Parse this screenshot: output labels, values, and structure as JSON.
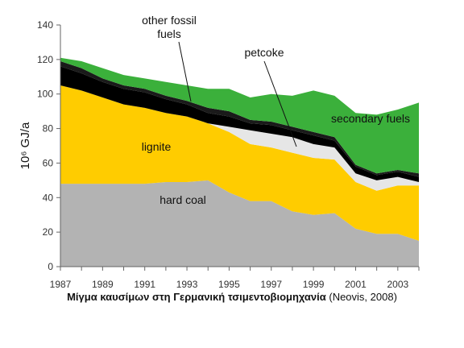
{
  "chart_data": {
    "type": "area",
    "stacked": true,
    "x": [
      1987,
      1988,
      1989,
      1990,
      1991,
      1992,
      1993,
      1994,
      1995,
      1996,
      1997,
      1998,
      1999,
      2000,
      2001,
      2002,
      2003,
      2004
    ],
    "xticks": [
      "1987",
      "1989",
      "1991",
      "1993",
      "1995",
      "1997",
      "1999",
      "2001",
      "2003"
    ],
    "ylim": [
      0,
      140
    ],
    "yticks": [
      "0",
      "20",
      "40",
      "60",
      "80",
      "100",
      "120",
      "140"
    ],
    "ylabel": "10⁶ GJ/a",
    "grid": false,
    "series": [
      {
        "name": "hard coal",
        "color": "#b3b3b3",
        "values": [
          48,
          48,
          48,
          48,
          48,
          49,
          49,
          50,
          43,
          38,
          38,
          32,
          30,
          31,
          22,
          19,
          19,
          15
        ]
      },
      {
        "name": "lignite",
        "color": "#ffcc00",
        "values": [
          57,
          54,
          50,
          46,
          44,
          40,
          38,
          33,
          35,
          33,
          31,
          34,
          33,
          31,
          27,
          25,
          28,
          32
        ]
      },
      {
        "name": "petcoke",
        "color": "#e6e6e6",
        "values": [
          0,
          0,
          0,
          0,
          0,
          0,
          0,
          0,
          3,
          8,
          8,
          9,
          8,
          7,
          5,
          6,
          5,
          2
        ]
      },
      {
        "name": "",
        "color": "#000000",
        "values": [
          11,
          10,
          9,
          9,
          9,
          8,
          7,
          6,
          6,
          4,
          5,
          4,
          5,
          4,
          4,
          3,
          3,
          3
        ]
      },
      {
        "name": "other fossil fuels",
        "color": "#1a1a1a",
        "values": [
          3,
          3,
          2,
          2,
          2,
          2,
          2,
          3,
          3,
          2,
          2,
          2,
          2,
          2,
          1,
          1,
          1,
          2
        ]
      },
      {
        "name": "secondary fuels",
        "color": "#3bb03b",
        "values": [
          2,
          4,
          6,
          6,
          6,
          8,
          9,
          11,
          13,
          13,
          16,
          18,
          24,
          24,
          30,
          34,
          35,
          41
        ]
      }
    ],
    "annotations": [
      {
        "text_lines": [
          "other fossil",
          "fuels"
        ]
      },
      {
        "text_lines": [
          "petcoke"
        ]
      },
      {
        "text_lines": [
          "secondary fuels"
        ]
      },
      {
        "text_lines": [
          "lignite"
        ]
      },
      {
        "text_lines": [
          "hard coal"
        ]
      }
    ],
    "caption": {
      "bold": "Μίγμα καυσίμων στη Γερμανική τσιμεντοβιομηχανία",
      "normal": " (Neovis, 2008)"
    }
  }
}
